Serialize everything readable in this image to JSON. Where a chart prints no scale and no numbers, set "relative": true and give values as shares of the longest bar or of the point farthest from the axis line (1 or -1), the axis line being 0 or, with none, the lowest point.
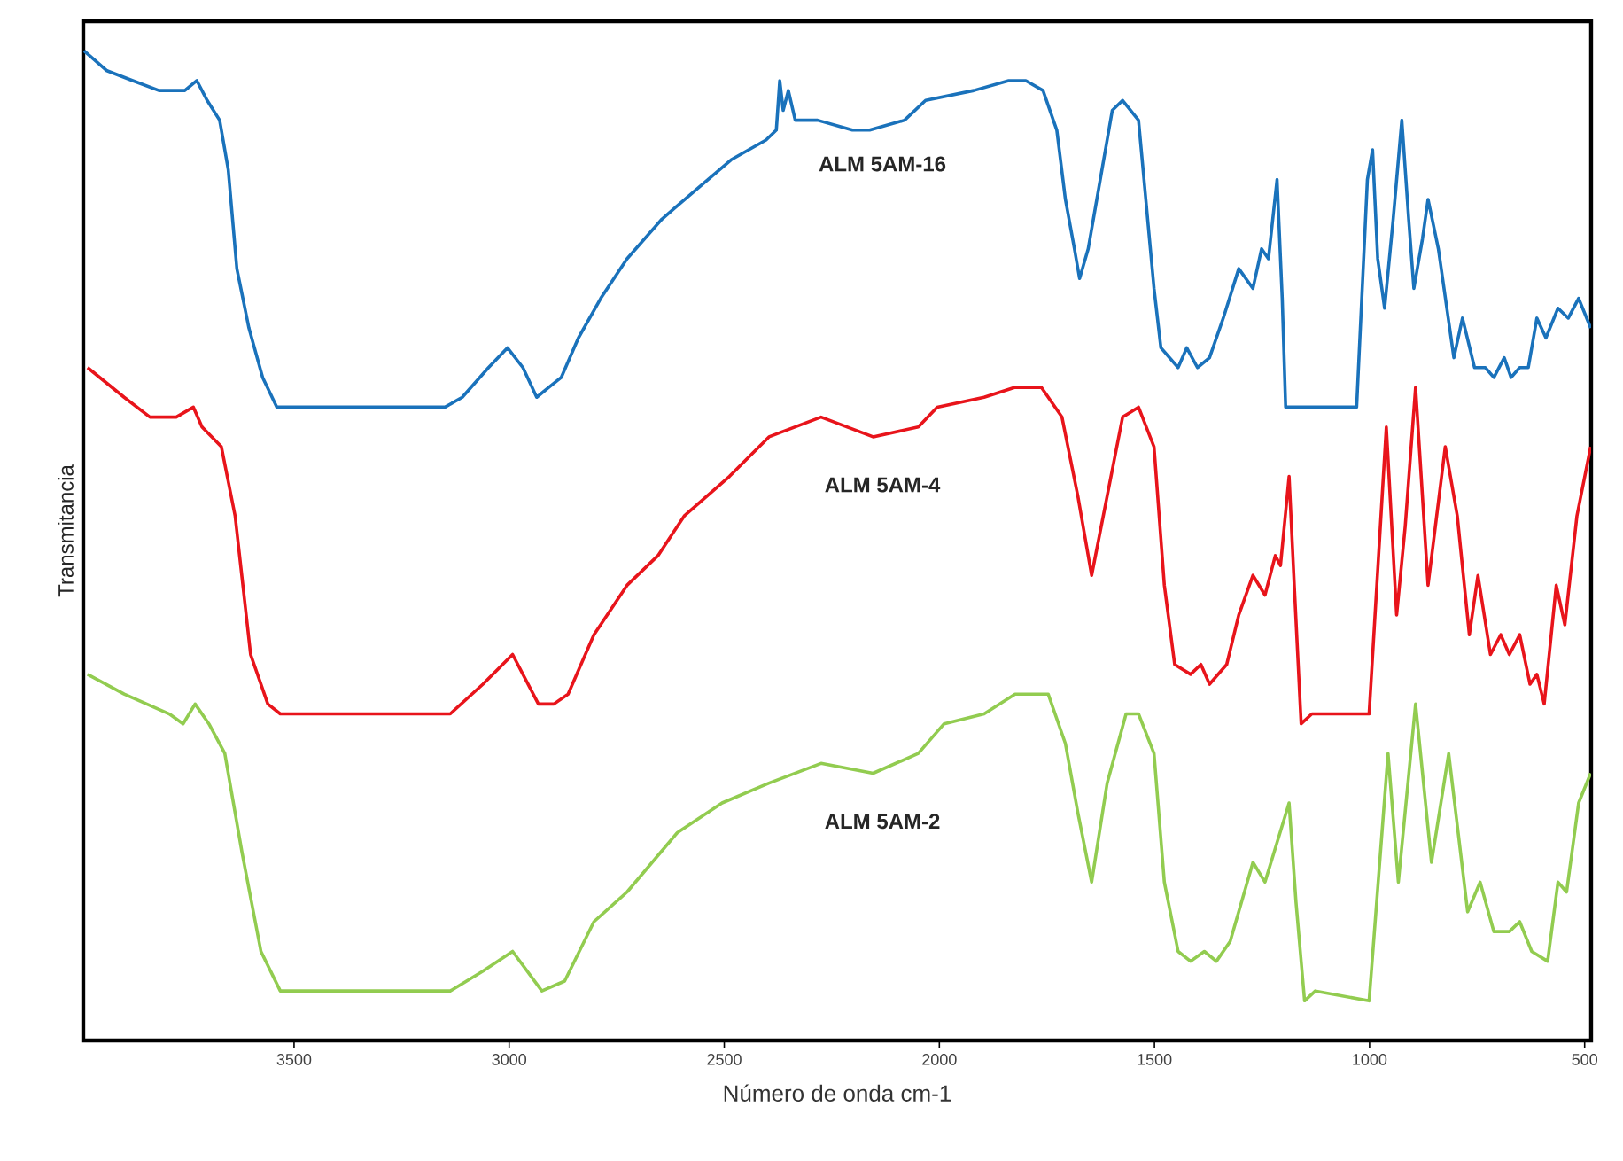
{
  "chart_data": {
    "type": "line",
    "relative": true,
    "xlabel": "Número de onda cm-1",
    "ylabel": "Transmitancia",
    "xlim": [
      3990,
      485
    ],
    "xticks": [
      3500,
      3000,
      2500,
      2000,
      1500,
      1000,
      500
    ],
    "marker": "none",
    "line_style": "solid",
    "legend": false,
    "grid": false,
    "series": [
      {
        "name": "ALM 5AM-16",
        "color": "#1a72bb",
        "x": [
          3988,
          3935,
          3875,
          3814,
          3754,
          3726,
          3702,
          3673,
          3653,
          3633,
          3605,
          3573,
          3540,
          3512,
          3452,
          3290,
          3149,
          3109,
          3048,
          3004,
          2968,
          2936,
          2908,
          2879,
          2839,
          2787,
          2726,
          2645,
          2565,
          2484,
          2403,
          2379,
          2371,
          2363,
          2351,
          2335,
          2283,
          2202,
          2162,
          2081,
          2032,
          1920,
          1839,
          1799,
          1759,
          1727,
          1707,
          1686,
          1674,
          1654,
          1626,
          1598,
          1574,
          1537,
          1501,
          1485,
          1445,
          1425,
          1400,
          1372,
          1340,
          1304,
          1271,
          1251,
          1235,
          1215,
          1203,
          1195,
          1167,
          1030,
          1005,
          993,
          981,
          965,
          945,
          925,
          909,
          897,
          877,
          864,
          840,
          804,
          784,
          756,
          731,
          711,
          687,
          671,
          651,
          631,
          611,
          590,
          562,
          538,
          514,
          486
        ],
        "values": [
          1.0,
          0.98,
          0.97,
          0.96,
          0.96,
          0.97,
          0.95,
          0.93,
          0.88,
          0.78,
          0.72,
          0.67,
          0.64,
          0.64,
          0.64,
          0.64,
          0.64,
          0.65,
          0.68,
          0.7,
          0.68,
          0.65,
          0.66,
          0.67,
          0.71,
          0.75,
          0.79,
          0.83,
          0.86,
          0.89,
          0.91,
          0.92,
          0.97,
          0.94,
          0.96,
          0.93,
          0.93,
          0.92,
          0.92,
          0.93,
          0.95,
          0.96,
          0.97,
          0.97,
          0.96,
          0.92,
          0.85,
          0.8,
          0.77,
          0.8,
          0.87,
          0.94,
          0.95,
          0.93,
          0.76,
          0.7,
          0.68,
          0.7,
          0.68,
          0.69,
          0.73,
          0.78,
          0.76,
          0.8,
          0.79,
          0.87,
          0.75,
          0.64,
          0.64,
          0.64,
          0.87,
          0.9,
          0.79,
          0.74,
          0.83,
          0.93,
          0.83,
          0.76,
          0.81,
          0.85,
          0.8,
          0.69,
          0.73,
          0.68,
          0.68,
          0.67,
          0.69,
          0.67,
          0.68,
          0.68,
          0.73,
          0.71,
          0.74,
          0.73,
          0.75,
          0.72
        ]
      },
      {
        "name": "ALM 5AM-4",
        "color": "#e8141b",
        "x": [
          3980,
          3895,
          3835,
          3774,
          3734,
          3714,
          3669,
          3637,
          3601,
          3561,
          3532,
          3411,
          3137,
          3061,
          2992,
          2932,
          2896,
          2863,
          2803,
          2726,
          2654,
          2593,
          2488,
          2396,
          2275,
          2154,
          2049,
          2005,
          1896,
          1824,
          1763,
          1715,
          1678,
          1646,
          1610,
          1574,
          1537,
          1501,
          1477,
          1453,
          1416,
          1392,
          1372,
          1332,
          1304,
          1271,
          1243,
          1219,
          1207,
          1187,
          1175,
          1159,
          1134,
          1001,
          961,
          937,
          917,
          893,
          864,
          824,
          796,
          768,
          748,
          719,
          695,
          675,
          651,
          627,
          611,
          594,
          566,
          546,
          518,
          486
        ],
        "values": [
          0.68,
          0.65,
          0.63,
          0.63,
          0.64,
          0.62,
          0.6,
          0.53,
          0.39,
          0.34,
          0.33,
          0.33,
          0.33,
          0.36,
          0.39,
          0.34,
          0.34,
          0.35,
          0.41,
          0.46,
          0.49,
          0.53,
          0.57,
          0.61,
          0.63,
          0.61,
          0.62,
          0.64,
          0.65,
          0.66,
          0.66,
          0.63,
          0.55,
          0.47,
          0.55,
          0.63,
          0.64,
          0.6,
          0.46,
          0.38,
          0.37,
          0.38,
          0.36,
          0.38,
          0.43,
          0.47,
          0.45,
          0.49,
          0.48,
          0.57,
          0.46,
          0.32,
          0.33,
          0.33,
          0.62,
          0.43,
          0.52,
          0.66,
          0.46,
          0.6,
          0.53,
          0.41,
          0.47,
          0.39,
          0.41,
          0.39,
          0.41,
          0.36,
          0.37,
          0.34,
          0.46,
          0.42,
          0.53,
          0.6
        ]
      },
      {
        "name": "ALM 5AM-2",
        "color": "#92cc50",
        "x": [
          3980,
          3895,
          3790,
          3758,
          3730,
          3698,
          3661,
          3621,
          3577,
          3532,
          3411,
          3137,
          3061,
          2992,
          2924,
          2871,
          2803,
          2726,
          2609,
          2505,
          2396,
          2275,
          2154,
          2049,
          1989,
          1896,
          1824,
          1747,
          1707,
          1678,
          1646,
          1610,
          1566,
          1537,
          1501,
          1477,
          1445,
          1416,
          1384,
          1356,
          1324,
          1271,
          1243,
          1187,
          1171,
          1151,
          1126,
          1001,
          957,
          933,
          893,
          856,
          816,
          772,
          743,
          711,
          675,
          651,
          623,
          586,
          562,
          542,
          514,
          486
        ],
        "values": [
          0.37,
          0.35,
          0.33,
          0.32,
          0.34,
          0.32,
          0.29,
          0.19,
          0.09,
          0.05,
          0.05,
          0.05,
          0.07,
          0.09,
          0.05,
          0.06,
          0.12,
          0.15,
          0.21,
          0.24,
          0.26,
          0.28,
          0.27,
          0.29,
          0.32,
          0.33,
          0.35,
          0.35,
          0.3,
          0.23,
          0.16,
          0.26,
          0.33,
          0.33,
          0.29,
          0.16,
          0.09,
          0.08,
          0.09,
          0.08,
          0.1,
          0.18,
          0.16,
          0.24,
          0.14,
          0.04,
          0.05,
          0.04,
          0.29,
          0.16,
          0.34,
          0.18,
          0.29,
          0.13,
          0.16,
          0.11,
          0.11,
          0.12,
          0.09,
          0.08,
          0.16,
          0.15,
          0.24,
          0.27
        ]
      }
    ]
  }
}
